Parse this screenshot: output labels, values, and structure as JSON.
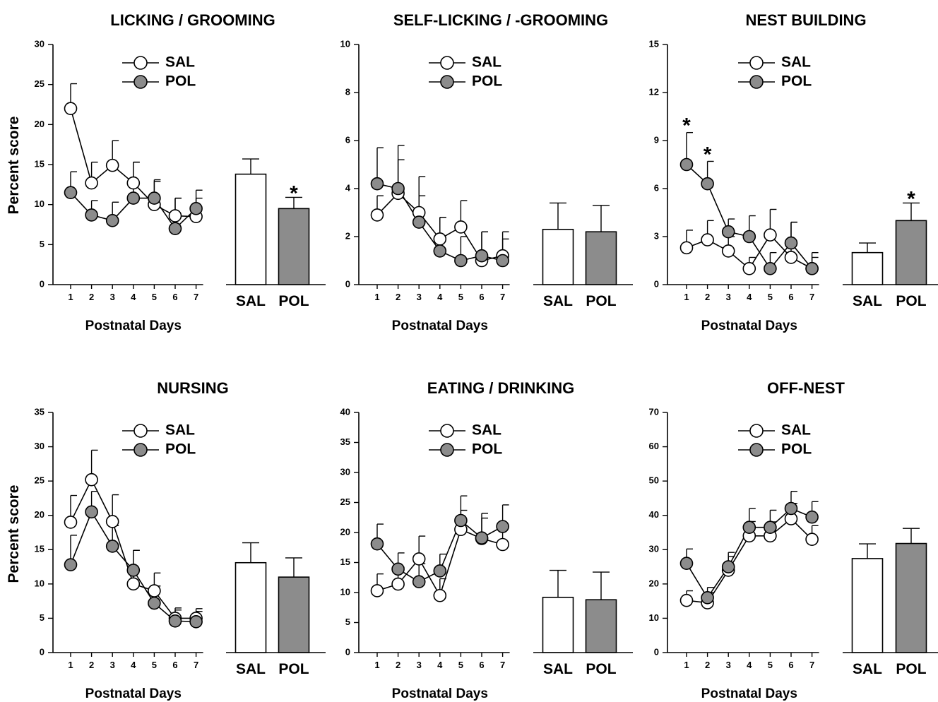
{
  "ylabel": "Percent score",
  "chart_data": [
    {
      "type": "line",
      "title": "LICKING / GROOMING",
      "xlabel": "Postnatal Days",
      "x": [
        1,
        2,
        3,
        4,
        5,
        6,
        7
      ],
      "ylim": [
        0,
        30
      ],
      "yticks": [
        0,
        5,
        10,
        15,
        20,
        25,
        30
      ],
      "series": [
        {
          "name": "SAL",
          "fill": "#ffffff",
          "values": [
            22.0,
            12.7,
            14.9,
            12.7,
            10.0,
            8.6,
            8.5
          ],
          "errors": [
            3.1,
            2.6,
            3.1,
            2.6,
            2.9,
            2.2,
            2.3
          ]
        },
        {
          "name": "POL",
          "fill": "#8c8c8c",
          "values": [
            11.5,
            8.7,
            8.0,
            10.8,
            10.8,
            7.0,
            9.5
          ],
          "errors": [
            2.6,
            1.8,
            2.3,
            4.5,
            2.3,
            3.8,
            2.3
          ]
        }
      ],
      "bars": {
        "categories": [
          "SAL",
          "POL"
        ],
        "values": [
          13.8,
          9.5
        ],
        "errors": [
          1.9,
          1.4
        ],
        "fills": [
          "#ffffff",
          "#8c8c8c"
        ]
      },
      "line_stars": [],
      "bar_stars": [
        1
      ]
    },
    {
      "type": "line",
      "title": "SELF-LICKING / -GROOMING",
      "xlabel": "Postnatal Days",
      "x": [
        1,
        2,
        3,
        4,
        5,
        6,
        7
      ],
      "ylim": [
        0,
        10
      ],
      "yticks": [
        0,
        2,
        4,
        6,
        8,
        10
      ],
      "series": [
        {
          "name": "SAL",
          "fill": "#ffffff",
          "values": [
            2.9,
            3.8,
            3.0,
            1.9,
            2.4,
            1.0,
            1.2
          ],
          "errors": [
            0.8,
            1.4,
            1.5,
            0.9,
            1.1,
            1.2,
            1.0
          ]
        },
        {
          "name": "POL",
          "fill": "#8c8c8c",
          "values": [
            4.2,
            4.0,
            2.6,
            1.4,
            1.0,
            1.2,
            1.0
          ],
          "errors": [
            1.5,
            1.8,
            1.1,
            1.4,
            1.0,
            1.0,
            0.9
          ]
        }
      ],
      "bars": {
        "categories": [
          "SAL",
          "POL"
        ],
        "values": [
          2.3,
          2.2
        ],
        "errors": [
          1.1,
          1.1
        ],
        "fills": [
          "#ffffff",
          "#8c8c8c"
        ]
      },
      "line_stars": [],
      "bar_stars": []
    },
    {
      "type": "line",
      "title": "NEST BUILDING",
      "xlabel": "Postnatal Days",
      "x": [
        1,
        2,
        3,
        4,
        5,
        6,
        7
      ],
      "ylim": [
        0,
        15
      ],
      "yticks": [
        0,
        3,
        6,
        9,
        12,
        15
      ],
      "series": [
        {
          "name": "SAL",
          "fill": "#ffffff",
          "values": [
            2.3,
            2.8,
            2.1,
            1.0,
            3.1,
            1.7,
            1.0
          ],
          "errors": [
            1.1,
            1.2,
            0.9,
            0.7,
            1.6,
            2.2,
            1.0
          ]
        },
        {
          "name": "POL",
          "fill": "#8c8c8c",
          "values": [
            7.5,
            6.3,
            3.3,
            3.0,
            1.0,
            2.6,
            1.0
          ],
          "errors": [
            2.0,
            1.4,
            0.8,
            1.3,
            1.0,
            1.3,
            0.7
          ]
        }
      ],
      "bars": {
        "categories": [
          "SAL",
          "POL"
        ],
        "values": [
          2.0,
          4.0
        ],
        "errors": [
          0.6,
          1.1
        ],
        "fills": [
          "#ffffff",
          "#8c8c8c"
        ]
      },
      "line_stars": [
        0,
        1
      ],
      "bar_stars": [
        1
      ]
    },
    {
      "type": "line",
      "title": "NURSING",
      "xlabel": "Postnatal Days",
      "x": [
        1,
        2,
        3,
        4,
        5,
        6,
        7
      ],
      "ylim": [
        0,
        35
      ],
      "yticks": [
        0,
        5,
        10,
        15,
        20,
        25,
        30,
        35
      ],
      "series": [
        {
          "name": "SAL",
          "fill": "#ffffff",
          "values": [
            19.0,
            25.2,
            19.1,
            10.0,
            9.0,
            5.0,
            5.0
          ],
          "errors": [
            3.9,
            4.3,
            3.9,
            4.9,
            2.6,
            1.5,
            1.4
          ]
        },
        {
          "name": "POL",
          "fill": "#8c8c8c",
          "values": [
            12.8,
            20.5,
            15.5,
            12.0,
            7.2,
            4.6,
            4.5
          ],
          "errors": [
            4.3,
            3.0,
            3.0,
            2.9,
            2.5,
            1.6,
            1.5
          ]
        }
      ],
      "bars": {
        "categories": [
          "SAL",
          "POL"
        ],
        "values": [
          13.1,
          11.0
        ],
        "errors": [
          2.9,
          2.8
        ],
        "fills": [
          "#ffffff",
          "#8c8c8c"
        ]
      },
      "line_stars": [],
      "bar_stars": []
    },
    {
      "type": "line",
      "title": "EATING / DRINKING",
      "xlabel": "Postnatal Days",
      "x": [
        1,
        2,
        3,
        4,
        5,
        6,
        7
      ],
      "ylim": [
        0,
        40
      ],
      "yticks": [
        0,
        5,
        10,
        15,
        20,
        25,
        30,
        35,
        40
      ],
      "series": [
        {
          "name": "SAL",
          "fill": "#ffffff",
          "values": [
            10.3,
            11.4,
            15.6,
            9.5,
            20.5,
            19.0,
            18.0
          ],
          "errors": [
            2.8,
            2.8,
            3.8,
            2.8,
            3.2,
            3.4,
            3.0
          ]
        },
        {
          "name": "POL",
          "fill": "#8c8c8c",
          "values": [
            18.1,
            13.9,
            11.8,
            13.6,
            22.0,
            19.1,
            21.0
          ],
          "errors": [
            3.3,
            2.7,
            3.0,
            2.8,
            4.1,
            4.1,
            3.6
          ]
        }
      ],
      "bars": {
        "categories": [
          "SAL",
          "POL"
        ],
        "values": [
          9.2,
          8.8
        ],
        "errors": [
          4.5,
          4.6
        ],
        "fills": [
          "#ffffff",
          "#8c8c8c"
        ]
      },
      "line_stars": [],
      "bar_stars": []
    },
    {
      "type": "line",
      "title": "OFF-NEST",
      "xlabel": "Postnatal Days",
      "x": [
        1,
        2,
        3,
        4,
        5,
        6,
        7
      ],
      "ylim": [
        0,
        70
      ],
      "yticks": [
        0,
        10,
        20,
        30,
        40,
        50,
        60,
        70
      ],
      "series": [
        {
          "name": "SAL",
          "fill": "#ffffff",
          "values": [
            15.2,
            14.5,
            24.0,
            34.0,
            34.0,
            39.0,
            33.0
          ],
          "errors": [
            2.8,
            3.0,
            4.0,
            4.2,
            4.1,
            4.5,
            4.0
          ]
        },
        {
          "name": "POL",
          "fill": "#8c8c8c",
          "values": [
            26.0,
            16.0,
            25.0,
            36.5,
            36.5,
            42.0,
            39.5
          ],
          "errors": [
            4.2,
            3.0,
            4.2,
            5.5,
            5.0,
            5.0,
            4.5
          ]
        }
      ],
      "bars": {
        "categories": [
          "SAL",
          "POL"
        ],
        "values": [
          27.4,
          31.8
        ],
        "errors": [
          4.3,
          4.4
        ],
        "fills": [
          "#ffffff",
          "#8c8c8c"
        ]
      },
      "line_stars": [],
      "bar_stars": []
    }
  ]
}
